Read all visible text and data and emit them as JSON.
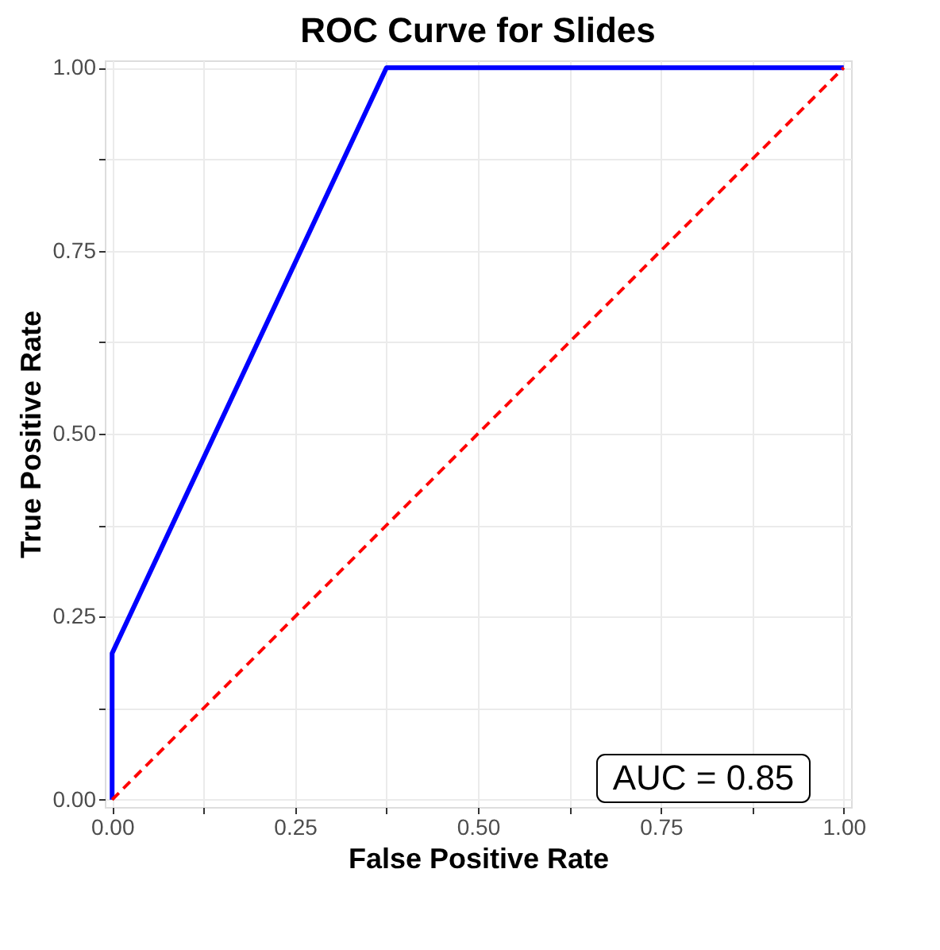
{
  "chart_data": {
    "type": "line",
    "title": "ROC Curve for Slides",
    "xlabel": "False Positive Rate",
    "ylabel": "True Positive Rate",
    "series": [
      {
        "color": "#0000ff",
        "x": [
          0,
          0,
          0.375,
          1
        ],
        "values": [
          0,
          0.2,
          1,
          1
        ],
        "line_style": "solid"
      },
      {
        "color": "#ff0000",
        "x": [
          0,
          1
        ],
        "values": [
          0,
          1
        ],
        "line_style": "dashed"
      }
    ],
    "xlim": [
      -0.01,
      1.01
    ],
    "ylim": [
      -0.01,
      1.01
    ],
    "xticks": [
      {
        "value": 0,
        "label": "0.00"
      },
      {
        "value": 0.125,
        "label": null
      },
      0.25,
      {
        "value": 0.375,
        "label": null
      },
      {
        "value": 0.5,
        "label": "0.50"
      },
      {
        "value": 0.625,
        "label": null
      },
      0.75,
      {
        "value": 0.875,
        "label": null
      },
      {
        "value": 1,
        "label": "1.00"
      }
    ],
    "yticks": [
      {
        "value": 0,
        "label": "0.00"
      },
      {
        "value": 0.125,
        "label": null
      },
      0.25,
      {
        "value": 0.375,
        "label": null
      },
      {
        "value": 0.5,
        "label": "0.50"
      },
      {
        "value": 0.625,
        "label": null
      },
      0.75,
      {
        "value": 0.875,
        "label": null
      },
      {
        "value": 1,
        "label": "1.00"
      }
    ],
    "grid": true,
    "marker": "none",
    "annotations": [
      "AUC = 0.85"
    ]
  }
}
